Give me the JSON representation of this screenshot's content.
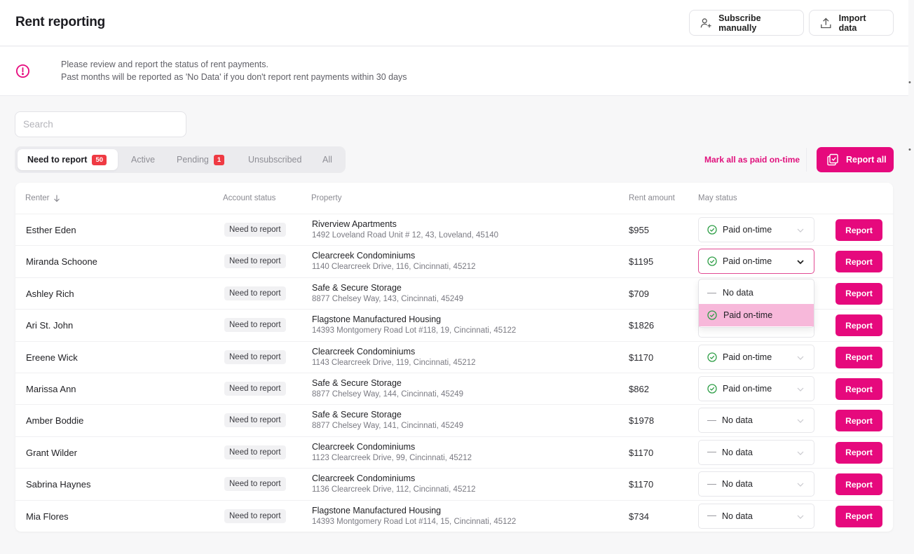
{
  "header": {
    "title": "Rent reporting",
    "subscribe_label": "Subscribe manually",
    "import_label": "Import data"
  },
  "notice": {
    "line1": "Please review and report the status of rent payments.",
    "line2": "Past months will be reported as 'No Data' if you don't report rent payments within 30 days"
  },
  "search": {
    "placeholder": "Search",
    "value": ""
  },
  "tabs": [
    {
      "label": "Need to report",
      "badge": "50"
    },
    {
      "label": "Active"
    },
    {
      "label": "Pending",
      "badge": "1"
    },
    {
      "label": "Unsubscribed"
    },
    {
      "label": "All"
    }
  ],
  "actions": {
    "mark_all_label": "Mark all as paid on-time",
    "report_all_label": "Report all"
  },
  "table": {
    "columns": [
      "Renter",
      "Account status",
      "Property",
      "Rent amount",
      "May status"
    ],
    "report_label": "Report",
    "rows": [
      {
        "name": "Esther Eden",
        "status": "Need to report",
        "property": "Riverview Apartments",
        "address": "1492 Loveland Road Unit # 12, 43, Loveland, 45140",
        "amount": "$955",
        "may_status": "Paid on-time"
      },
      {
        "name": "Miranda Schoone",
        "status": "Need to report",
        "property": "Clearcreek Condominiums",
        "address": "1140 Clearcreek Drive, 116, Cincinnati, 45212",
        "amount": "$1195",
        "may_status": "Paid on-time"
      },
      {
        "name": "Ashley Rich",
        "status": "Need to report",
        "property": "Safe & Secure Storage",
        "address": "8877 Chelsey Way, 143, Cincinnati, 45249",
        "amount": "$709",
        "may_status": ""
      },
      {
        "name": "Ari St. John",
        "status": "Need to report",
        "property": "Flagstone Manufactured Housing",
        "address": "14393 Montgomery Road Lot #118, 19, Cincinnati, 45122",
        "amount": "$1826",
        "may_status": ""
      },
      {
        "name": "Ereene Wick",
        "status": "Need to report",
        "property": "Clearcreek Condominiums",
        "address": "1143 Clearcreek Drive, 119, Cincinnati, 45212",
        "amount": "$1170",
        "may_status": "Paid on-time"
      },
      {
        "name": "Marissa Ann",
        "status": "Need to report",
        "property": "Safe & Secure Storage",
        "address": "8877 Chelsey Way, 144, Cincinnati, 45249",
        "amount": "$862",
        "may_status": "Paid on-time"
      },
      {
        "name": "Amber Boddie",
        "status": "Need to report",
        "property": "Safe & Secure Storage",
        "address": "8877 Chelsey Way, 141, Cincinnati, 45249",
        "amount": "$1978",
        "may_status": "No data"
      },
      {
        "name": "Grant Wilder",
        "status": "Need to report",
        "property": "Clearcreek Condominiums",
        "address": "1123 Clearcreek Drive, 99, Cincinnati, 45212",
        "amount": "$1170",
        "may_status": "No data"
      },
      {
        "name": "Sabrina Haynes",
        "status": "Need to report",
        "property": "Clearcreek Condominiums",
        "address": "1136 Clearcreek Drive, 112, Cincinnati, 45212",
        "amount": "$1170",
        "may_status": "No data"
      },
      {
        "name": "Mia Flores",
        "status": "Need to report",
        "property": "Flagstone Manufactured Housing",
        "address": "14393 Montgomery Road Lot #114, 15, Cincinnati, 45122",
        "amount": "$734",
        "may_status": "No data"
      }
    ]
  },
  "dropdown": {
    "options": [
      "No data",
      "Paid on-time"
    ],
    "selected": "Paid on-time"
  },
  "colors": {
    "accent": "#e6097d",
    "badge": "#ef3a43",
    "check": "#2e9e46",
    "selected_option": "#f7b8da"
  },
  "icons": {
    "subscribe": "person-add-icon",
    "import": "upload-icon",
    "alert": "alert-circle-icon",
    "report_all": "document-check-icon",
    "paid": "check-circle-icon",
    "chevron": "chevron-down-icon",
    "sort": "arrow-down-icon"
  }
}
